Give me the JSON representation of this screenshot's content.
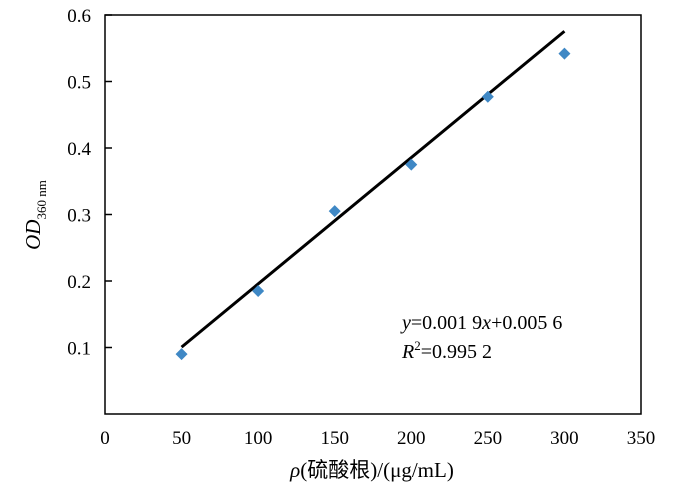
{
  "chart_data": {
    "type": "scatter",
    "title": "",
    "xlabel": {
      "symbol": "ρ",
      "text": "(硫酸根)/(μg/mL)"
    },
    "ylabel": {
      "main": "OD",
      "subscript": "360 nm"
    },
    "xlim": [
      0,
      350
    ],
    "ylim": [
      0,
      0.6
    ],
    "x_ticks": [
      0,
      50,
      100,
      150,
      200,
      250,
      300,
      350
    ],
    "y_ticks": [
      0.1,
      0.2,
      0.3,
      0.4,
      0.5,
      0.6
    ],
    "grid": false,
    "legend": "none",
    "series": [
      {
        "marker": "diamond",
        "color": "#3F88C5",
        "x": [
          50,
          100,
          150,
          200,
          250,
          300
        ],
        "y": [
          0.09,
          0.185,
          0.305,
          0.375,
          0.477,
          0.542
        ]
      }
    ],
    "trendline": {
      "color": "#000000",
      "slope": 0.0019,
      "intercept": 0.0056,
      "x_range": [
        50,
        300
      ]
    },
    "equation": {
      "y_var": "y",
      "eq1": "=0.001 9",
      "x_var": "x",
      "eq2": "+0.005 6",
      "r_var": "R",
      "r_sup": "2",
      "r_val": "=0.995 2"
    }
  }
}
